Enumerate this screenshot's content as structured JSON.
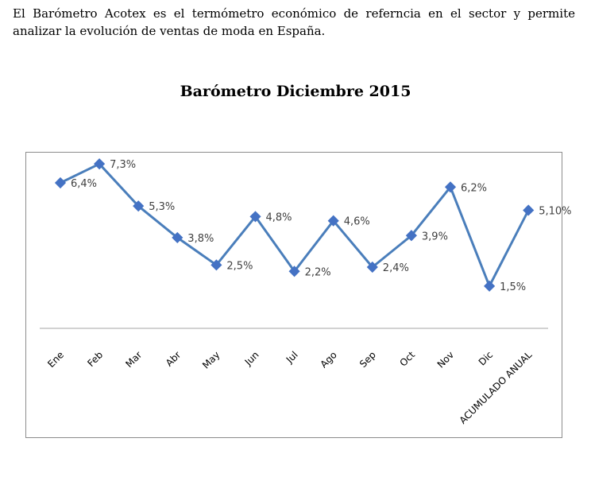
{
  "intro_text": "El Barómetro Acotex es el termómetro económico de referncia en el sector y permite analizar la evolución de ventas de moda en España.",
  "colors": {
    "line": "#4a7ebb",
    "marker": "#4472c4",
    "axis": "#a6a6a6"
  },
  "chart_data": {
    "type": "line",
    "title": "Barómetro Diciembre 2015",
    "xlabel": "",
    "ylabel": "",
    "grid": false,
    "legend": "none",
    "categories": [
      "Ene",
      "Feb",
      "Mar",
      "Abr",
      "May",
      "Jun",
      "Jul",
      "Ago",
      "Sep",
      "Oct",
      "Nov",
      "Dic",
      "ACUMULADO ANUAL"
    ],
    "series": [
      {
        "values": [
          6.4,
          7.3,
          5.3,
          3.8,
          2.5,
          4.8,
          2.2,
          4.6,
          2.4,
          3.9,
          6.2,
          1.5,
          5.1
        ],
        "data_labels": [
          "6,4%",
          "7,3%",
          "5,3%",
          "3,8%",
          "2,5%",
          "4,8%",
          "2,2%",
          "4,6%",
          "2,4%",
          "3,9%",
          "6,2%",
          "1,5%",
          "5,10%"
        ]
      }
    ]
  }
}
